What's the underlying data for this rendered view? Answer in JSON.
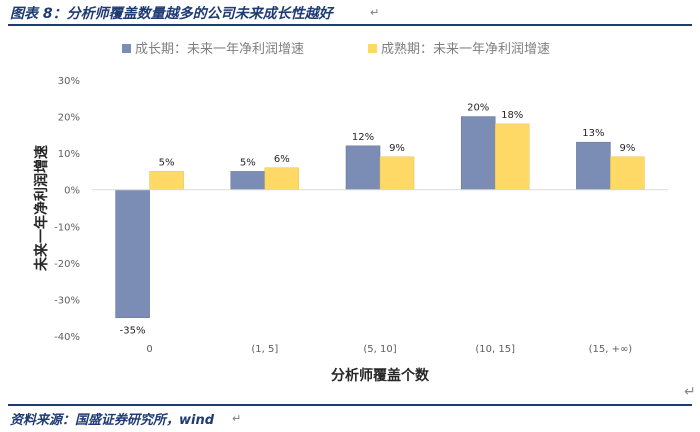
{
  "header": {
    "title": "图表 8：分析师覆盖数量越多的公司未来成长性越好"
  },
  "footer": {
    "source": "资料来源：国盛证券研究所，wind"
  },
  "colors": {
    "growth": "#7c8db5",
    "mature": "#ffd966",
    "brand": "#1f3b73"
  },
  "chart_data": {
    "type": "bar",
    "title": "",
    "categories": [
      "0",
      "(1, 5]",
      "(5, 10]",
      "(10, 15]",
      "(15, +∞)"
    ],
    "series": [
      {
        "name": "成长期：未来一年净利润增速",
        "values": [
          -35,
          5,
          12,
          20,
          13
        ],
        "labels": [
          "-35%",
          "5%",
          "12%",
          "20%",
          "13%"
        ]
      },
      {
        "name": "成熟期：未来一年净利润增速",
        "values": [
          5,
          6,
          9,
          18,
          9
        ],
        "labels": [
          "5%",
          "6%",
          "9%",
          "18%",
          "9%"
        ]
      }
    ],
    "xlabel": "分析师覆盖个数",
    "ylabel": "未来一年净利润增速",
    "ylim": [
      -40,
      30
    ],
    "yticks": [
      30,
      20,
      10,
      0,
      -10,
      -20,
      -30,
      -40
    ],
    "ytick_labels": [
      "30%",
      "20%",
      "10%",
      "0%",
      "-10%",
      "-20%",
      "-30%",
      "-40%"
    ],
    "grid": false,
    "legend_position": "top"
  }
}
